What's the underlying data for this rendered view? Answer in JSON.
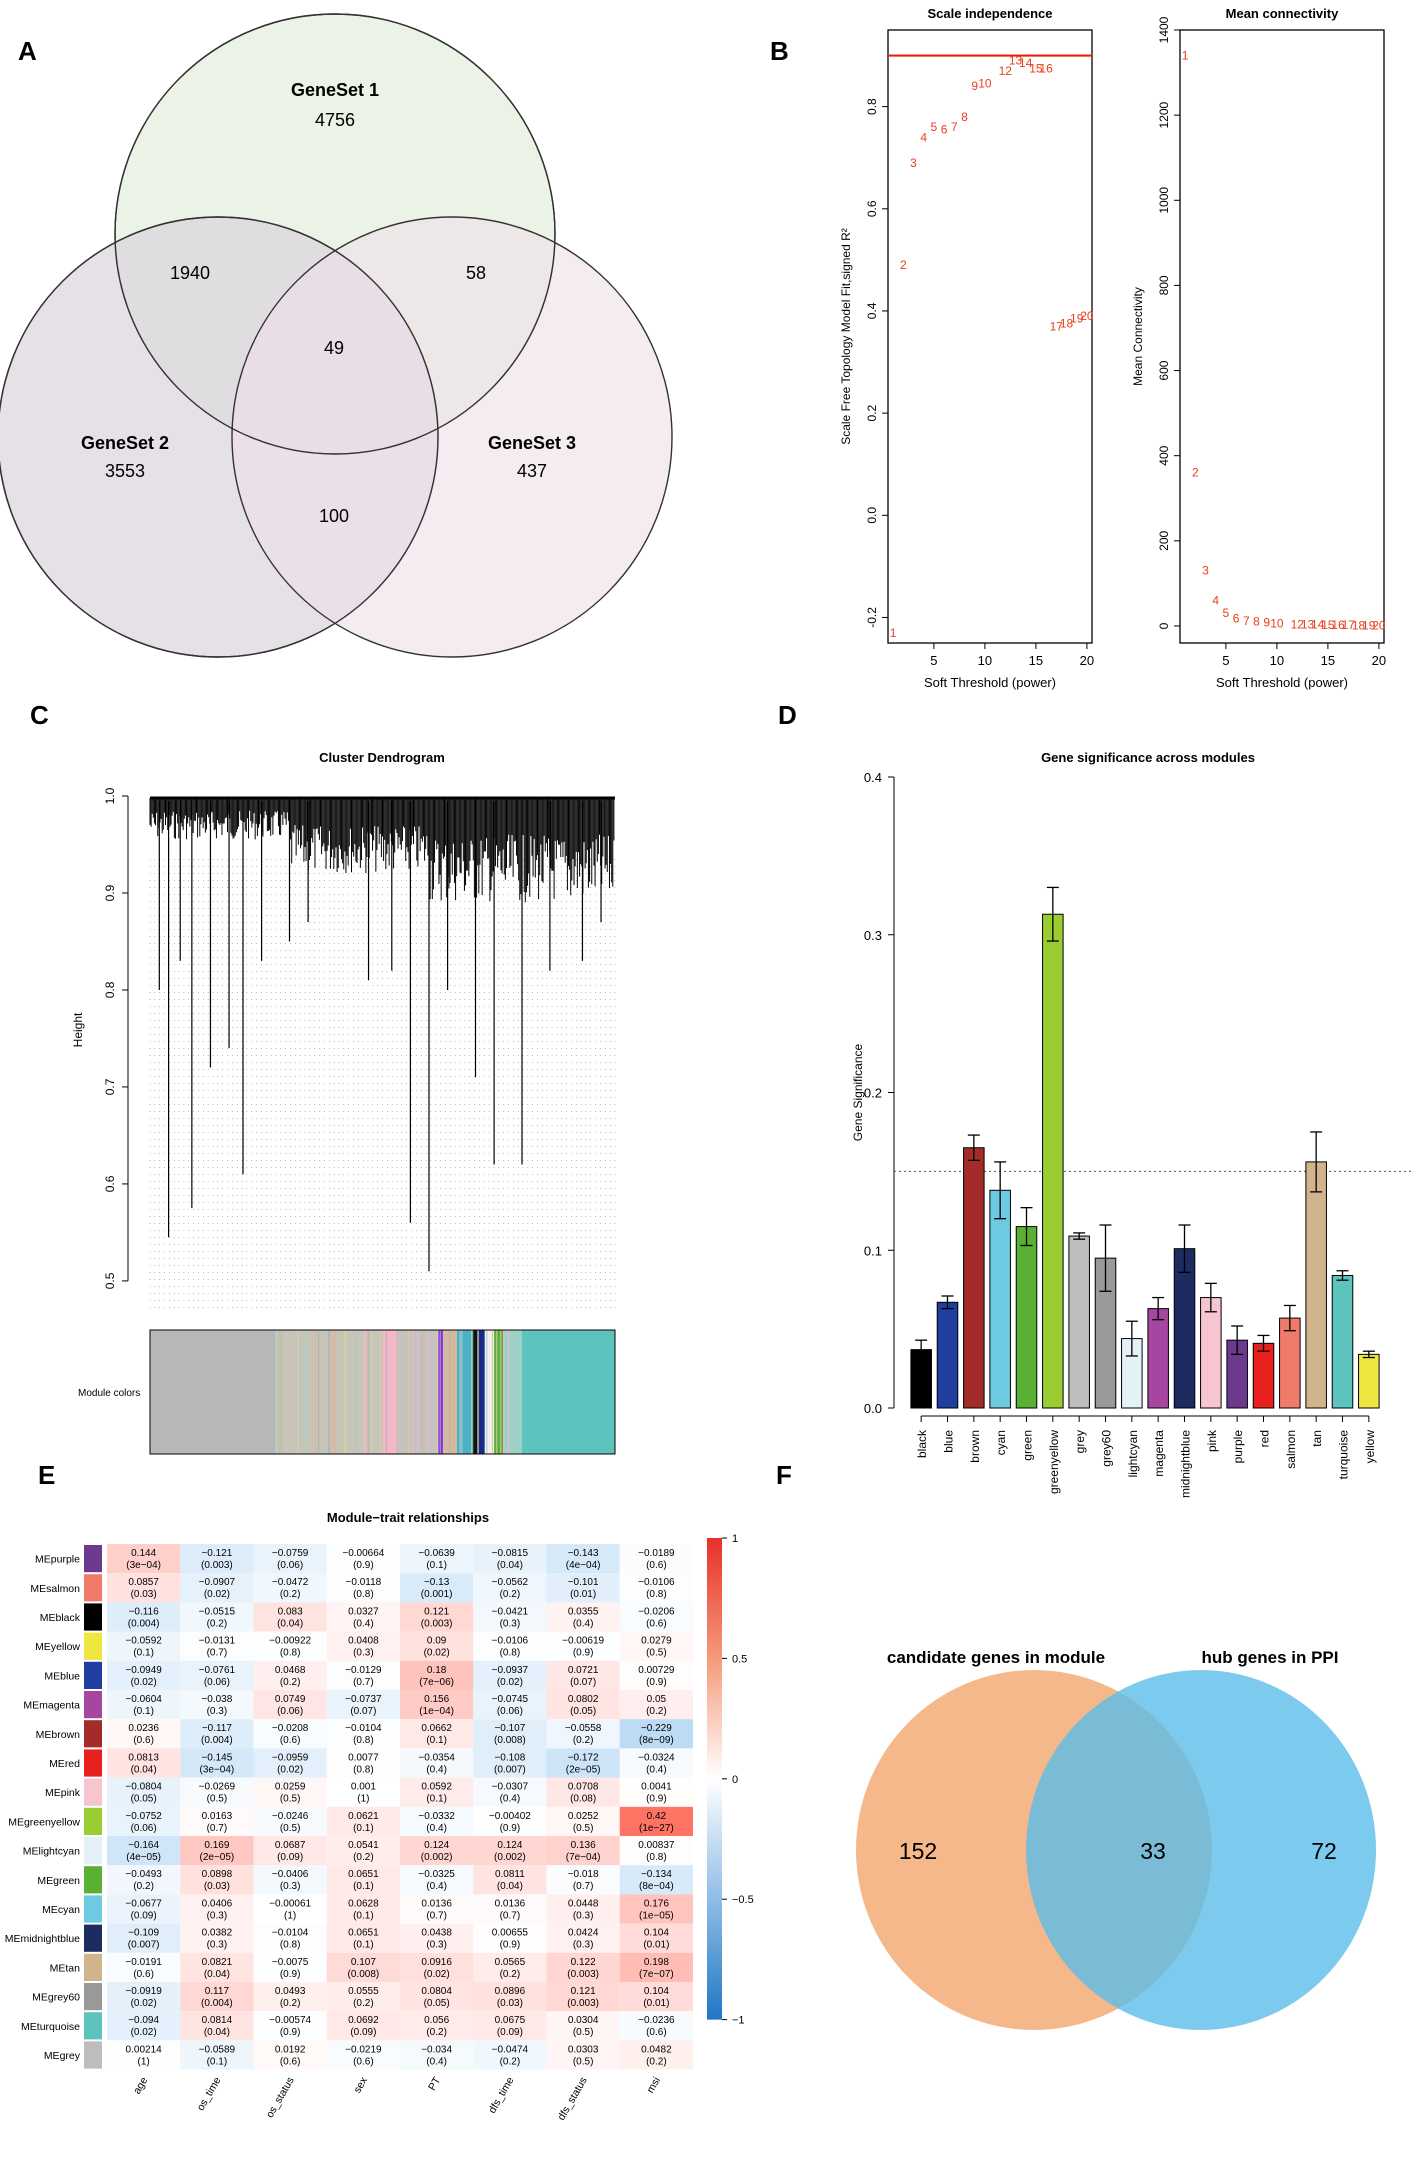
{
  "panels": {
    "A": {
      "label": "A",
      "sets": [
        {
          "name": "GeneSet 1",
          "count": "4756",
          "color": "#e6f1e2"
        },
        {
          "name": "GeneSet 2",
          "count": "3553",
          "color": "#ddd4de"
        },
        {
          "name": "GeneSet 3",
          "count": "437",
          "color": "#eedfe7"
        }
      ],
      "intersections": {
        "s12": "1940",
        "s13": "58",
        "s123": "49",
        "s23": "100"
      }
    },
    "B": {
      "label": "B"
    },
    "C": {
      "label": "C"
    },
    "D": {
      "label": "D"
    },
    "E": {
      "label": "E"
    },
    "F": {
      "label": "F",
      "left_title": "candidate genes in module",
      "right_title": "hub genes in PPI",
      "left_only": "152",
      "overlap": "33",
      "right_only": "72",
      "left_color": "#f4b07e",
      "right_color": "#5bbde8"
    }
  },
  "chart_data": [
    {
      "panel": "B-left",
      "type": "scatter",
      "title": "Scale independence",
      "xlabel": "Soft Threshold (power)",
      "ylabel": "Scale Free Topology Model Fit,signed R^2",
      "xlim": [
        0.5,
        20.5
      ],
      "ylim": [
        -0.25,
        0.95
      ],
      "xticks": [
        5,
        10,
        15,
        20
      ],
      "yticks": [
        -0.2,
        0.0,
        0.2,
        0.4,
        0.6,
        0.8
      ],
      "hline": 0.9,
      "hline_color": "#e8200e",
      "point_color": "#e8401c",
      "x": [
        1,
        2,
        3,
        4,
        5,
        6,
        7,
        8,
        9,
        10,
        12,
        13,
        14,
        15,
        16,
        17,
        18,
        19,
        20
      ],
      "y": [
        -0.23,
        0.49,
        0.69,
        0.74,
        0.76,
        0.755,
        0.76,
        0.78,
        0.84,
        0.845,
        0.87,
        0.89,
        0.885,
        0.875,
        0.875,
        0.37,
        0.375,
        0.385,
        0.39
      ],
      "labels": [
        "1",
        "2",
        "3",
        "4",
        "5",
        "6",
        "7",
        "8",
        "9",
        "10",
        "12",
        "13",
        "14",
        "15",
        "16",
        "17",
        "18",
        "19",
        "20"
      ]
    },
    {
      "panel": "B-right",
      "type": "scatter",
      "title": "Mean connectivity",
      "xlabel": "Soft Threshold (power)",
      "ylabel": "Mean Connectivity",
      "xlim": [
        0.5,
        20.5
      ],
      "ylim": [
        -40,
        1400
      ],
      "xticks": [
        5,
        10,
        15,
        20
      ],
      "yticks": [
        0,
        200,
        400,
        600,
        800,
        1000,
        1200,
        1400
      ],
      "point_color": "#e8401c",
      "x": [
        1,
        2,
        3,
        4,
        5,
        6,
        7,
        8,
        9,
        10,
        12,
        13,
        14,
        15,
        16,
        17,
        18,
        19,
        20
      ],
      "y": [
        1340,
        360,
        130,
        60,
        30,
        18,
        12,
        10,
        8,
        6,
        4,
        3,
        3,
        2,
        2,
        2,
        1,
        1,
        1
      ],
      "labels": [
        "1",
        "2",
        "3",
        "4",
        "5",
        "6",
        "7",
        "8",
        "9",
        "10",
        "12",
        "13",
        "14",
        "15",
        "16",
        "17",
        "18",
        "19",
        "20"
      ]
    },
    {
      "panel": "C",
      "type": "dendrogram",
      "title": "Cluster Dendrogram",
      "ylabel": "Height",
      "yticks": [
        0.5,
        0.6,
        0.7,
        0.8,
        0.9,
        1.0
      ],
      "ylim": [
        0.47,
        1.0
      ],
      "color_bar_label": "Module colors",
      "long_branches": [
        {
          "x": 0.02,
          "y": 0.8
        },
        {
          "x": 0.04,
          "y": 0.545
        },
        {
          "x": 0.065,
          "y": 0.83
        },
        {
          "x": 0.09,
          "y": 0.575
        },
        {
          "x": 0.13,
          "y": 0.72
        },
        {
          "x": 0.17,
          "y": 0.74
        },
        {
          "x": 0.2,
          "y": 0.61
        },
        {
          "x": 0.24,
          "y": 0.83
        },
        {
          "x": 0.3,
          "y": 0.85
        },
        {
          "x": 0.34,
          "y": 0.87
        },
        {
          "x": 0.47,
          "y": 0.81
        },
        {
          "x": 0.52,
          "y": 0.82
        },
        {
          "x": 0.56,
          "y": 0.56
        },
        {
          "x": 0.6,
          "y": 0.51
        },
        {
          "x": 0.64,
          "y": 0.8
        },
        {
          "x": 0.7,
          "y": 0.71
        },
        {
          "x": 0.74,
          "y": 0.62
        },
        {
          "x": 0.8,
          "y": 0.62
        },
        {
          "x": 0.86,
          "y": 0.82
        },
        {
          "x": 0.93,
          "y": 0.83
        },
        {
          "x": 0.97,
          "y": 0.87
        }
      ],
      "color_bar": [
        {
          "to": 0.27,
          "color": "#b8b8b8"
        },
        {
          "to": 0.5,
          "color": "#c9c4b8"
        },
        {
          "to": 0.53,
          "color": "#f5b8c8"
        },
        {
          "to": 0.62,
          "color": "#c6c0c0"
        },
        {
          "to": 0.63,
          "color": "#8a2be2"
        },
        {
          "to": 0.66,
          "color": "#d8b89a"
        },
        {
          "to": 0.695,
          "color": "#4ab0c8"
        },
        {
          "to": 0.705,
          "color": "#121212"
        },
        {
          "to": 0.72,
          "color": "#1a2a8a"
        },
        {
          "to": 0.74,
          "color": "#f0f0f0"
        },
        {
          "to": 0.76,
          "color": "#5ab032"
        },
        {
          "to": 0.8,
          "color": "#9fd0c8"
        },
        {
          "to": 1.0,
          "color": "#5cc4bc"
        }
      ]
    },
    {
      "panel": "D",
      "type": "bar",
      "title": "Gene significance across modules",
      "ylabel": "Gene Significance",
      "ylim": [
        0,
        0.4
      ],
      "yticks": [
        0.0,
        0.1,
        0.2,
        0.3,
        0.4
      ],
      "threshold": 0.15,
      "categories": [
        "black",
        "blue",
        "brown",
        "cyan",
        "green",
        "greenyellow",
        "grey",
        "grey60",
        "lightcyan",
        "magenta",
        "midnightblue",
        "pink",
        "purple",
        "red",
        "salmon",
        "tan",
        "turquoise",
        "yellow"
      ],
      "values": [
        0.037,
        0.067,
        0.165,
        0.138,
        0.115,
        0.313,
        0.109,
        0.095,
        0.044,
        0.063,
        0.101,
        0.07,
        0.043,
        0.041,
        0.057,
        0.156,
        0.084,
        0.034
      ],
      "errors": [
        0.006,
        0.004,
        0.008,
        0.018,
        0.012,
        0.017,
        0.002,
        0.021,
        0.011,
        0.007,
        0.015,
        0.009,
        0.009,
        0.005,
        0.008,
        0.019,
        0.003,
        0.002
      ],
      "colors": [
        "#000000",
        "#1f3fa0",
        "#a32b2a",
        "#6ccbe0",
        "#5ab032",
        "#9acd32",
        "#bdbdbd",
        "#999999",
        "#e4f2f7",
        "#a646a0",
        "#1e2b60",
        "#f7c5cf",
        "#6b3a8f",
        "#e8201e",
        "#f07b6a",
        "#d2b48c",
        "#5cc4bc",
        "#f0e642"
      ]
    },
    {
      "panel": "E",
      "type": "heatmap",
      "title": "Module−trait relationships",
      "columns": [
        "age",
        "os_time",
        "os_status",
        "sex",
        "PT",
        "dfs_time",
        "dfs_status",
        "msi"
      ],
      "rows": [
        "MEpurple",
        "MEsalmon",
        "MEblack",
        "MEyellow",
        "MEblue",
        "MEmagenta",
        "MEbrown",
        "MEred",
        "MEpink",
        "MEgreenyellow",
        "MElightcyan",
        "MEgreen",
        "MEcyan",
        "MEmidnightblue",
        "MEtan",
        "MEgrey60",
        "MEturquoise",
        "MEgrey"
      ],
      "row_colors": [
        "#6b3a8f",
        "#f07b6a",
        "#000000",
        "#f0e642",
        "#1f3fa0",
        "#a646a0",
        "#a32b2a",
        "#e8201e",
        "#f7c5cf",
        "#9acd32",
        "#e4f2f7",
        "#5ab032",
        "#6ccbe0",
        "#1e2b60",
        "#d2b48c",
        "#999999",
        "#5cc4bc",
        "#bdbdbd"
      ],
      "values": [
        [
          "0.144",
          "−0.121",
          "−0.0759",
          "−0.00664",
          "−0.0639",
          "−0.0815",
          "−0.143",
          "−0.0189"
        ],
        [
          "0.0857",
          "−0.0907",
          "−0.0472",
          "−0.0118",
          "−0.13",
          "−0.0562",
          "−0.101",
          "−0.0106"
        ],
        [
          "−0.116",
          "−0.0515",
          "0.083",
          "0.0327",
          "0.121",
          "−0.0421",
          "0.0355",
          "−0.0206"
        ],
        [
          "−0.0592",
          "−0.0131",
          "−0.00922",
          "0.0408",
          "0.09",
          "−0.0106",
          "−0.00619",
          "0.0279"
        ],
        [
          "−0.0949",
          "−0.0761",
          "0.0468",
          "−0.0129",
          "0.18",
          "−0.0937",
          "0.0721",
          "0.00729"
        ],
        [
          "−0.0604",
          "−0.038",
          "0.0749",
          "−0.0737",
          "0.156",
          "−0.0745",
          "0.0802",
          "0.05"
        ],
        [
          "0.0236",
          "−0.117",
          "−0.0208",
          "−0.0104",
          "0.0662",
          "−0.107",
          "−0.0558",
          "−0.229"
        ],
        [
          "0.0813",
          "−0.145",
          "−0.0959",
          "0.0077",
          "−0.0354",
          "−0.108",
          "−0.172",
          "−0.0324"
        ],
        [
          "−0.0804",
          "−0.0269",
          "0.0259",
          "0.001",
          "0.0592",
          "−0.0307",
          "0.0708",
          "0.0041"
        ],
        [
          "−0.0752",
          "0.0163",
          "−0.0246",
          "0.0621",
          "−0.0332",
          "−0.00402",
          "0.0252",
          "0.42"
        ],
        [
          "−0.164",
          "0.169",
          "0.0687",
          "0.0541",
          "0.124",
          "0.124",
          "0.136",
          "0.00837"
        ],
        [
          "−0.0493",
          "0.0898",
          "−0.0406",
          "0.0651",
          "−0.0325",
          "0.0811",
          "−0.018",
          "−0.134"
        ],
        [
          "−0.0677",
          "0.0406",
          "−0.00061",
          "0.0628",
          "0.0136",
          "0.0136",
          "0.0448",
          "0.176"
        ],
        [
          "−0.109",
          "0.0382",
          "−0.0104",
          "0.0651",
          "0.0438",
          "0.00655",
          "0.0424",
          "0.104"
        ],
        [
          "−0.0191",
          "0.0821",
          "−0.0075",
          "0.107",
          "0.0916",
          "0.0565",
          "0.122",
          "0.198"
        ],
        [
          "−0.0919",
          "0.117",
          "0.0493",
          "0.0555",
          "0.0804",
          "0.0896",
          "0.121",
          "0.104"
        ],
        [
          "−0.094",
          "0.0814",
          "−0.00574",
          "0.0692",
          "0.056",
          "0.0675",
          "0.0304",
          "−0.0236"
        ],
        [
          "0.00214",
          "−0.0589",
          "0.0192",
          "−0.0219",
          "−0.034",
          "−0.0474",
          "0.0303",
          "0.0482"
        ]
      ],
      "pvalues": [
        [
          "(3e−04)",
          "(0.003)",
          "(0.06)",
          "(0.9)",
          "(0.1)",
          "(0.04)",
          "(4e−04)",
          "(0.6)"
        ],
        [
          "(0.03)",
          "(0.02)",
          "(0.2)",
          "(0.8)",
          "(0.001)",
          "(0.2)",
          "(0.01)",
          "(0.8)"
        ],
        [
          "(0.004)",
          "(0.2)",
          "(0.04)",
          "(0.4)",
          "(0.003)",
          "(0.3)",
          "(0.4)",
          "(0.6)"
        ],
        [
          "(0.1)",
          "(0.7)",
          "(0.8)",
          "(0.3)",
          "(0.02)",
          "(0.8)",
          "(0.9)",
          "(0.5)"
        ],
        [
          "(0.02)",
          "(0.06)",
          "(0.2)",
          "(0.7)",
          "(7e−06)",
          "(0.02)",
          "(0.07)",
          "(0.9)"
        ],
        [
          "(0.1)",
          "(0.3)",
          "(0.06)",
          "(0.07)",
          "(1e−04)",
          "(0.06)",
          "(0.05)",
          "(0.2)"
        ],
        [
          "(0.6)",
          "(0.004)",
          "(0.6)",
          "(0.8)",
          "(0.1)",
          "(0.008)",
          "(0.2)",
          "(8e−09)"
        ],
        [
          "(0.04)",
          "(3e−04)",
          "(0.02)",
          "(0.8)",
          "(0.4)",
          "(0.007)",
          "(2e−05)",
          "(0.4)"
        ],
        [
          "(0.05)",
          "(0.5)",
          "(0.5)",
          "(1)",
          "(0.1)",
          "(0.4)",
          "(0.08)",
          "(0.9)"
        ],
        [
          "(0.06)",
          "(0.7)",
          "(0.5)",
          "(0.1)",
          "(0.4)",
          "(0.9)",
          "(0.5)",
          "(1e−27)"
        ],
        [
          "(4e−05)",
          "(2e−05)",
          "(0.09)",
          "(0.2)",
          "(0.002)",
          "(0.002)",
          "(7e−04)",
          "(0.8)"
        ],
        [
          "(0.2)",
          "(0.03)",
          "(0.3)",
          "(0.1)",
          "(0.4)",
          "(0.04)",
          "(0.7)",
          "(8e−04)"
        ],
        [
          "(0.09)",
          "(0.3)",
          "(1)",
          "(0.1)",
          "(0.7)",
          "(0.7)",
          "(0.3)",
          "(1e−05)"
        ],
        [
          "(0.007)",
          "(0.3)",
          "(0.8)",
          "(0.1)",
          "(0.3)",
          "(0.9)",
          "(0.3)",
          "(0.01)"
        ],
        [
          "(0.6)",
          "(0.04)",
          "(0.9)",
          "(0.008)",
          "(0.02)",
          "(0.2)",
          "(0.003)",
          "(7e−07)"
        ],
        [
          "(0.02)",
          "(0.004)",
          "(0.2)",
          "(0.2)",
          "(0.05)",
          "(0.03)",
          "(0.003)",
          "(0.01)"
        ],
        [
          "(0.02)",
          "(0.04)",
          "(0.9)",
          "(0.09)",
          "(0.2)",
          "(0.09)",
          "(0.5)",
          "(0.6)"
        ],
        [
          "(1)",
          "(0.1)",
          "(0.6)",
          "(0.6)",
          "(0.4)",
          "(0.2)",
          "(0.5)",
          "(0.2)"
        ]
      ],
      "colorbar_ticks": [
        "1",
        "0.5",
        "0",
        "−0.5",
        "−1"
      ],
      "colorbar_range": [
        -1,
        1
      ]
    }
  ]
}
